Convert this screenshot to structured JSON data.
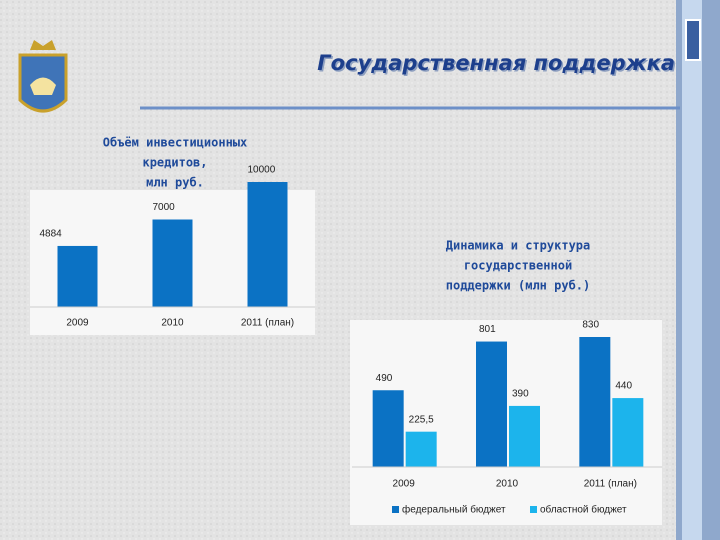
{
  "title": "Государственная поддержка",
  "chart_data": [
    {
      "type": "bar",
      "title": [
        "Объём инвестиционных",
        "кредитов,",
        "млн руб."
      ],
      "categories": [
        "2009",
        "2010",
        "2011 (план)"
      ],
      "values": [
        4884,
        7000,
        10000
      ],
      "color": "#0b72c4"
    },
    {
      "type": "grouped-bar",
      "title": [
        "Динамика и структура",
        "государственной",
        "поддержки (млн руб.)"
      ],
      "categories": [
        "2009",
        "2010",
        "2011 (план)"
      ],
      "series": [
        {
          "name": "федеральный бюджет",
          "color": "#0b72c4",
          "values": [
            490,
            801,
            830
          ]
        },
        {
          "name": "областной бюджет",
          "color": "#1cb4ec",
          "values": [
            225.5,
            390,
            440
          ],
          "value_labels": [
            "225,5",
            "390",
            "440"
          ]
        }
      ],
      "legend": "bottom"
    }
  ]
}
